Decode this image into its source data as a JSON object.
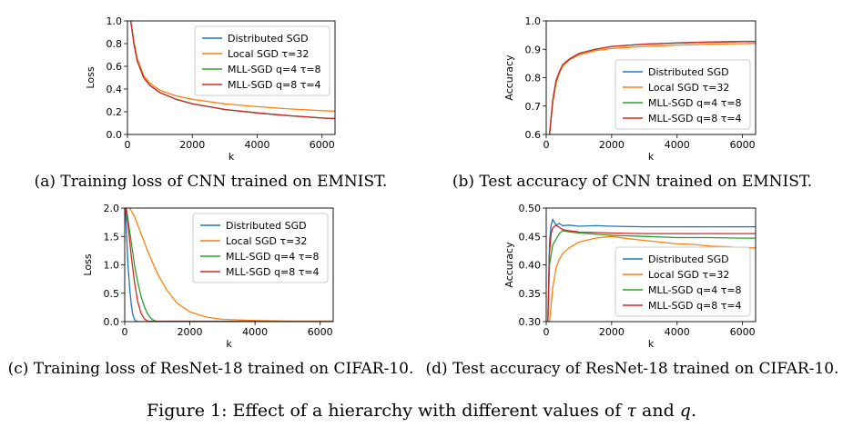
{
  "figure_caption": {
    "prefix": "Figure 1: Effect of a hierarchy with different values of",
    "tau": "τ",
    "and": "and",
    "q": "q",
    "suffix": "."
  },
  "legend_labels": [
    "Distributed SGD",
    "Local SGD τ=32",
    "MLL-SGD q=4 τ=8",
    "MLL-SGD q=8 τ=4"
  ],
  "series_colors": [
    "#1f77b4",
    "#ff7f0e",
    "#2ca02c",
    "#d62728"
  ],
  "chart_data": [
    {
      "id": "a",
      "type": "line",
      "caption": "(a) Training loss of CNN trained on EMNIST.",
      "xlabel": "k",
      "ylabel": "Loss",
      "xlim": [
        0,
        6400
      ],
      "ylim": [
        0.0,
        1.0
      ],
      "xticks": [
        0,
        2000,
        4000,
        6000
      ],
      "xticklabels": [
        "0",
        "2000",
        "4000",
        "6000"
      ],
      "yticks": [
        0.0,
        0.2,
        0.4,
        0.6,
        0.8,
        1.0
      ],
      "yticklabels": [
        "0.0",
        "0.2",
        "0.4",
        "0.6",
        "0.8",
        "1.0"
      ],
      "legend_position": "top-right",
      "series": [
        {
          "name": "Distributed SGD",
          "x": [
            100,
            200,
            300,
            500,
            700,
            1000,
            1500,
            2000,
            3000,
            4000,
            5000,
            6000,
            6400
          ],
          "y": [
            1.0,
            0.8,
            0.65,
            0.5,
            0.43,
            0.37,
            0.31,
            0.27,
            0.22,
            0.19,
            0.165,
            0.145,
            0.14
          ]
        },
        {
          "name": "Local SGD τ=32",
          "x": [
            100,
            200,
            300,
            500,
            700,
            1000,
            1500,
            2000,
            3000,
            4000,
            5000,
            6000,
            6400
          ],
          "y": [
            1.0,
            0.82,
            0.67,
            0.52,
            0.45,
            0.39,
            0.34,
            0.31,
            0.27,
            0.245,
            0.225,
            0.21,
            0.205
          ]
        },
        {
          "name": "MLL-SGD q=4 τ=8",
          "x": [
            100,
            200,
            300,
            500,
            700,
            1000,
            1500,
            2000,
            3000,
            4000,
            5000,
            6000,
            6400
          ],
          "y": [
            1.0,
            0.8,
            0.65,
            0.5,
            0.43,
            0.37,
            0.31,
            0.27,
            0.22,
            0.19,
            0.165,
            0.145,
            0.14
          ]
        },
        {
          "name": "MLL-SGD q=8 τ=4",
          "x": [
            100,
            200,
            300,
            500,
            700,
            1000,
            1500,
            2000,
            3000,
            4000,
            5000,
            6000,
            6400
          ],
          "y": [
            1.0,
            0.8,
            0.65,
            0.5,
            0.43,
            0.37,
            0.31,
            0.27,
            0.22,
            0.19,
            0.165,
            0.145,
            0.14
          ]
        }
      ]
    },
    {
      "id": "b",
      "type": "line",
      "caption": "(b) Test accuracy of CNN trained on EMNIST.",
      "xlabel": "k",
      "ylabel": "Accuracy",
      "xlim": [
        0,
        6400
      ],
      "ylim": [
        0.6,
        1.0
      ],
      "xticks": [
        0,
        2000,
        4000,
        6000
      ],
      "xticklabels": [
        "0",
        "2000",
        "4000",
        "6000"
      ],
      "yticks": [
        0.6,
        0.7,
        0.8,
        0.9,
        1.0
      ],
      "yticklabels": [
        "0.6",
        "0.7",
        "0.8",
        "0.9",
        "1.0"
      ],
      "legend_position": "bottom-right",
      "series": [
        {
          "name": "Distributed SGD",
          "x": [
            100,
            200,
            300,
            400,
            500,
            700,
            1000,
            1500,
            2000,
            3000,
            4000,
            5000,
            6000,
            6400
          ],
          "y": [
            0.6,
            0.72,
            0.79,
            0.82,
            0.845,
            0.865,
            0.885,
            0.9,
            0.91,
            0.918,
            0.923,
            0.926,
            0.928,
            0.928
          ]
        },
        {
          "name": "Local SGD τ=32",
          "x": [
            100,
            200,
            300,
            400,
            500,
            700,
            1000,
            1500,
            2000,
            3000,
            4000,
            5000,
            6000,
            6400
          ],
          "y": [
            0.6,
            0.71,
            0.78,
            0.815,
            0.84,
            0.862,
            0.88,
            0.895,
            0.903,
            0.91,
            0.915,
            0.918,
            0.92,
            0.921
          ]
        },
        {
          "name": "MLL-SGD q=4 τ=8",
          "x": [
            100,
            200,
            300,
            400,
            500,
            700,
            1000,
            1500,
            2000,
            3000,
            4000,
            5000,
            6000,
            6400
          ],
          "y": [
            0.6,
            0.72,
            0.79,
            0.82,
            0.845,
            0.865,
            0.885,
            0.9,
            0.91,
            0.918,
            0.922,
            0.925,
            0.927,
            0.927
          ]
        },
        {
          "name": "MLL-SGD q=8 τ=4",
          "x": [
            100,
            200,
            300,
            400,
            500,
            700,
            1000,
            1500,
            2000,
            3000,
            4000,
            5000,
            6000,
            6400
          ],
          "y": [
            0.6,
            0.72,
            0.79,
            0.82,
            0.845,
            0.865,
            0.885,
            0.9,
            0.91,
            0.918,
            0.922,
            0.925,
            0.927,
            0.927
          ]
        }
      ]
    },
    {
      "id": "c",
      "type": "line",
      "caption": "(c) Training loss of ResNet-18 trained on CIFAR-10.",
      "xlabel": "k",
      "ylabel": "Loss",
      "xlim": [
        0,
        6400
      ],
      "ylim": [
        0.0,
        2.0
      ],
      "xticks": [
        0,
        2000,
        4000,
        6000
      ],
      "xticklabels": [
        "0",
        "2000",
        "4000",
        "6000"
      ],
      "yticks": [
        0.0,
        0.5,
        1.0,
        1.5,
        2.0
      ],
      "yticklabels": [
        "0.0",
        "0.5",
        "1.0",
        "1.5",
        "2.0"
      ],
      "legend_position": "top-right",
      "series": [
        {
          "name": "Distributed SGD",
          "x": [
            20,
            50,
            100,
            150,
            200,
            250,
            300,
            350,
            400,
            6400
          ],
          "y": [
            2.0,
            1.6,
            1.0,
            0.6,
            0.3,
            0.12,
            0.04,
            0.01,
            0.0,
            0.0
          ]
        },
        {
          "name": "Local SGD τ=32",
          "x": [
            150,
            300,
            500,
            700,
            1000,
            1300,
            1600,
            2000,
            2500,
            3000,
            4000,
            5000,
            6400
          ],
          "y": [
            2.0,
            1.85,
            1.55,
            1.25,
            0.85,
            0.55,
            0.33,
            0.17,
            0.08,
            0.04,
            0.02,
            0.01,
            0.01
          ]
        },
        {
          "name": "MLL-SGD q=4 τ=8",
          "x": [
            50,
            100,
            200,
            300,
            400,
            500,
            600,
            700,
            800,
            900,
            1000,
            6400
          ],
          "y": [
            2.0,
            1.8,
            1.4,
            1.0,
            0.7,
            0.45,
            0.27,
            0.14,
            0.06,
            0.02,
            0.0,
            0.0
          ]
        },
        {
          "name": "MLL-SGD q=8 τ=4",
          "x": [
            30,
            100,
            200,
            300,
            400,
            500,
            600,
            700,
            6400
          ],
          "y": [
            2.0,
            1.7,
            1.15,
            0.7,
            0.35,
            0.15,
            0.05,
            0.01,
            0.0
          ]
        }
      ]
    },
    {
      "id": "d",
      "type": "line",
      "caption": "(d) Test accuracy of ResNet-18 trained on CIFAR-10.",
      "xlabel": "k",
      "ylabel": "Accuracy",
      "xlim": [
        0,
        6400
      ],
      "ylim": [
        0.3,
        0.5
      ],
      "xticks": [
        0,
        2000,
        4000,
        6000
      ],
      "xticklabels": [
        "0",
        "2000",
        "4000",
        "6000"
      ],
      "yticks": [
        0.3,
        0.35,
        0.4,
        0.45,
        0.5
      ],
      "yticklabels": [
        "0.30",
        "0.35",
        "0.40",
        "0.45",
        "0.50"
      ],
      "legend_position": "bottom-right",
      "series": [
        {
          "name": "Distributed SGD",
          "x": [
            50,
            100,
            150,
            200,
            250,
            300,
            400,
            500,
            700,
            1000,
            1500,
            2000,
            3000,
            4000,
            5000,
            6000,
            6400
          ],
          "y": [
            0.3,
            0.44,
            0.47,
            0.48,
            0.475,
            0.47,
            0.473,
            0.469,
            0.47,
            0.468,
            0.469,
            0.468,
            0.467,
            0.467,
            0.467,
            0.467,
            0.467
          ]
        },
        {
          "name": "Local SGD τ=32",
          "x": [
            100,
            200,
            300,
            400,
            500,
            700,
            1000,
            1500,
            2000,
            2500,
            3000,
            3500,
            4000,
            4500,
            5000,
            5500,
            6000,
            6400
          ],
          "y": [
            0.3,
            0.36,
            0.395,
            0.41,
            0.42,
            0.43,
            0.44,
            0.447,
            0.45,
            0.446,
            0.443,
            0.44,
            0.437,
            0.436,
            0.433,
            0.432,
            0.43,
            0.43
          ]
        },
        {
          "name": "MLL-SGD q=4 τ=8",
          "x": [
            50,
            100,
            200,
            300,
            400,
            500,
            700,
            1000,
            1500,
            2000,
            3000,
            4000,
            5000,
            6000,
            6400
          ],
          "y": [
            0.3,
            0.4,
            0.435,
            0.445,
            0.455,
            0.46,
            0.458,
            0.456,
            0.454,
            0.452,
            0.45,
            0.448,
            0.448,
            0.447,
            0.447
          ]
        },
        {
          "name": "MLL-SGD q=8 τ=4",
          "x": [
            50,
            100,
            150,
            200,
            300,
            400,
            500,
            700,
            1000,
            1500,
            2000,
            3000,
            4000,
            5000,
            6000,
            6400
          ],
          "y": [
            0.3,
            0.42,
            0.455,
            0.465,
            0.47,
            0.466,
            0.462,
            0.46,
            0.458,
            0.457,
            0.456,
            0.455,
            0.455,
            0.455,
            0.455,
            0.455
          ]
        }
      ]
    }
  ]
}
